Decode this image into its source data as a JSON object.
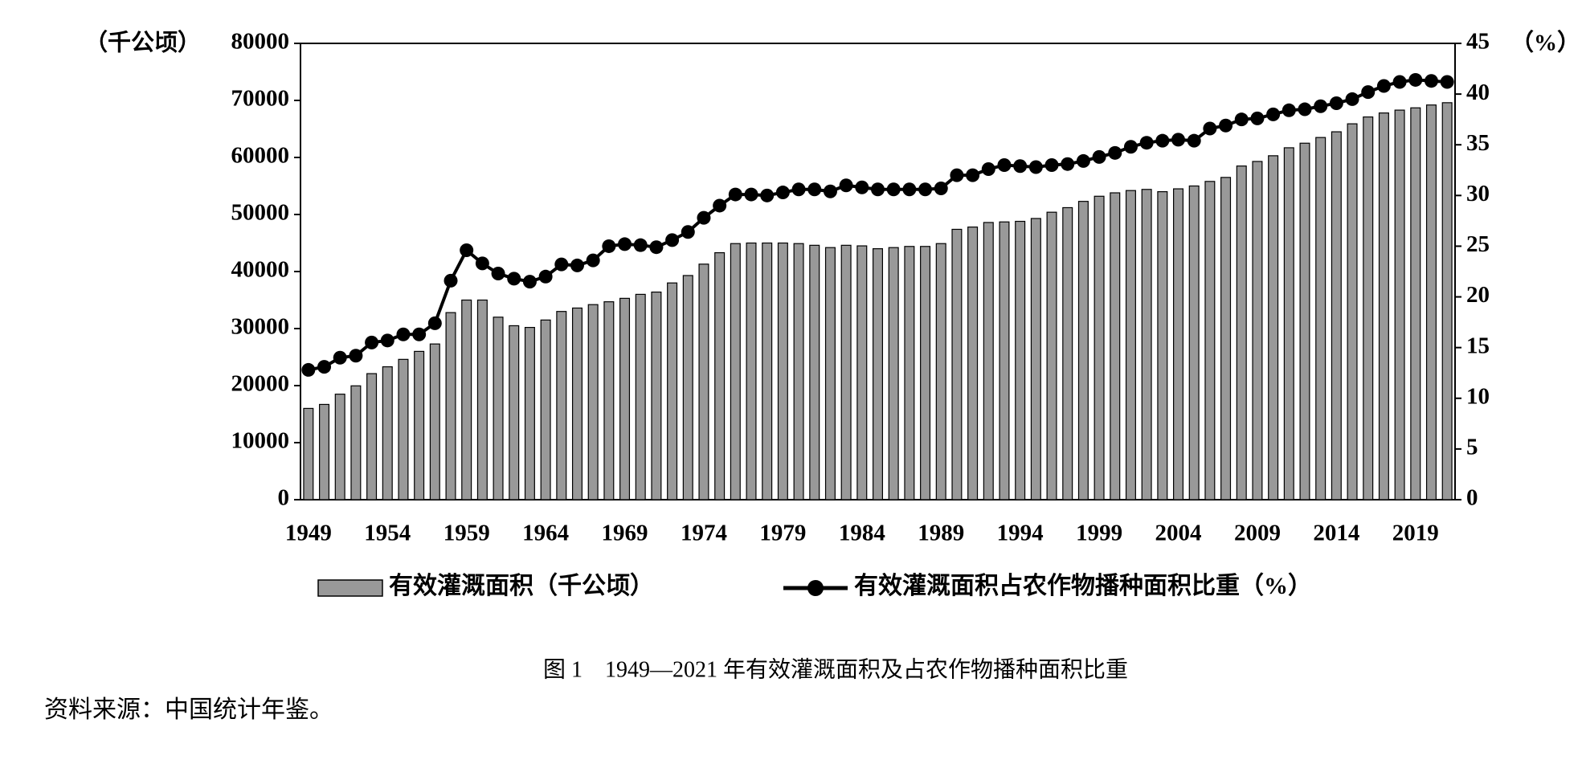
{
  "chart_data": {
    "type": "bar",
    "y_label": "（千公顷）",
    "y2_label": "（%）",
    "caption": "图 1　1949—2021 年有效灌溉面积及占农作物播种面积比重",
    "source": "资料来源：中国统计年鉴。",
    "categories": [
      "1949",
      null,
      null,
      null,
      null,
      "1954",
      null,
      null,
      null,
      null,
      "1959",
      null,
      null,
      null,
      null,
      "1964",
      null,
      null,
      null,
      null,
      "1969",
      null,
      null,
      null,
      null,
      "1974",
      null,
      null,
      null,
      null,
      "1979",
      null,
      null,
      null,
      null,
      "1984",
      null,
      null,
      null,
      null,
      "1989",
      null,
      null,
      null,
      null,
      "1994",
      null,
      null,
      null,
      null,
      "1999",
      null,
      null,
      null,
      null,
      "2004",
      null,
      null,
      null,
      null,
      "2009",
      null,
      null,
      null,
      null,
      "2014",
      null,
      null,
      null,
      null,
      "2019",
      null,
      null
    ],
    "ylim": [
      0,
      80000
    ],
    "yticks": [
      0,
      10000,
      20000,
      30000,
      40000,
      50000,
      60000,
      70000,
      80000
    ],
    "y2lim": [
      0,
      45
    ],
    "y2ticks": [
      0,
      5,
      10,
      15,
      20,
      25,
      30,
      35,
      40,
      45
    ],
    "series": [
      {
        "name": "有效灌溉面积（千公顷）",
        "type": "bar",
        "color": "#999999",
        "values": [
          16000,
          16700,
          18500,
          19960,
          22100,
          23300,
          24600,
          26000,
          27300,
          32800,
          35000,
          35000,
          32000,
          30500,
          30200,
          31500,
          33000,
          33600,
          34200,
          34700,
          35300,
          36000,
          36400,
          38000,
          39300,
          41300,
          43300,
          44900,
          45000,
          45000,
          45000,
          44900,
          44600,
          44200,
          44600,
          44500,
          44000,
          44200,
          44400,
          44400,
          44900,
          47400,
          47800,
          48600,
          48700,
          48800,
          49300,
          50400,
          51200,
          52300,
          53200,
          53800,
          54200,
          54400,
          54000,
          54500,
          55000,
          55800,
          56500,
          58500,
          59300,
          60300,
          61700,
          62500,
          63500,
          64500,
          65900,
          67100,
          67800,
          68300,
          68700,
          69200,
          69600
        ]
      },
      {
        "name": "有效灌溉面积占农作物播种面积比重（%）",
        "type": "line",
        "axis": "y2",
        "color": "#000000",
        "values": [
          12.8,
          13.1,
          14.0,
          14.2,
          15.5,
          15.7,
          16.3,
          16.3,
          17.4,
          21.6,
          24.6,
          23.3,
          22.3,
          21.8,
          21.5,
          22.0,
          23.2,
          23.1,
          23.6,
          25.0,
          25.2,
          25.1,
          24.9,
          25.6,
          26.4,
          27.8,
          29.0,
          30.1,
          30.1,
          30.0,
          30.3,
          30.6,
          30.6,
          30.4,
          31.0,
          30.8,
          30.6,
          30.6,
          30.6,
          30.6,
          30.7,
          32.0,
          32.0,
          32.6,
          33.0,
          32.9,
          32.8,
          33.0,
          33.1,
          33.4,
          33.8,
          34.2,
          34.8,
          35.2,
          35.4,
          35.5,
          35.4,
          36.6,
          36.9,
          37.5,
          37.6,
          38.0,
          38.4,
          38.5,
          38.8,
          39.1,
          39.5,
          40.2,
          40.8,
          41.2,
          41.4,
          41.3,
          41.2
        ]
      }
    ]
  }
}
